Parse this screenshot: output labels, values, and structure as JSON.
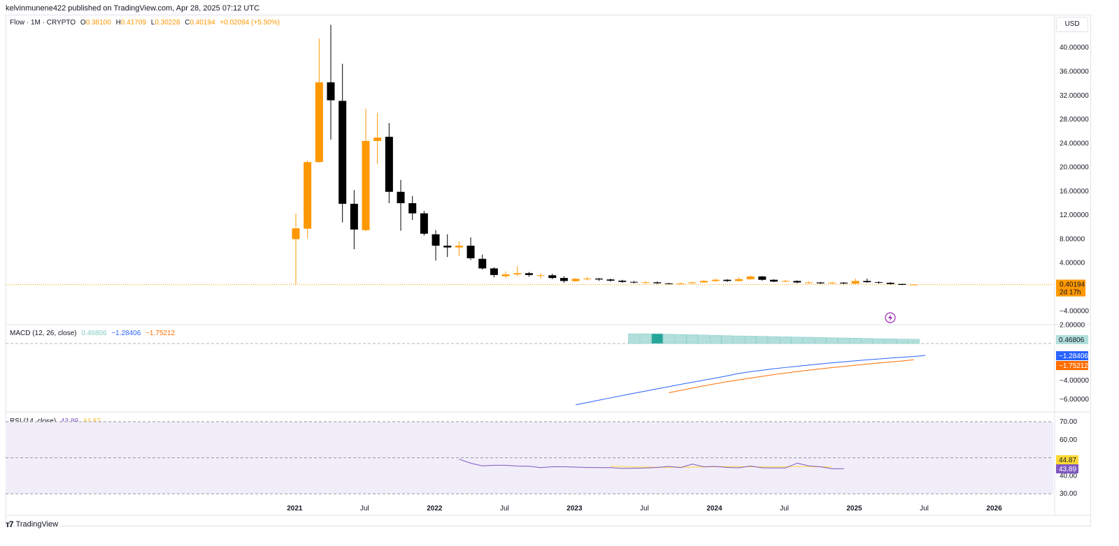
{
  "header": {
    "publish_line": "kelvinmunene422 published on TradingView.com, Apr 28, 2025 07:12 UTC"
  },
  "price_legend": {
    "symbol": "Flow · 1M · CRYPTO",
    "o_label": "O",
    "o": "0.38100",
    "h_label": "H",
    "h": "0.41709",
    "l_label": "L",
    "l": "0.30228",
    "c_label": "C",
    "c": "0.40194",
    "change": "+0.02094 (+5.50%)"
  },
  "currency_button": "USD",
  "macd_legend": {
    "title": "MACD (12, 26, close)",
    "hist": "0.46806",
    "macd": "−1.28406",
    "signal": "−1.75212"
  },
  "rsi_legend": {
    "title": "RSI (14, close)",
    "rsi": "43.89",
    "ma": "44.87"
  },
  "footer": {
    "brand": "TradingView"
  },
  "colors": {
    "up": "#ff9800",
    "down": "#000000",
    "macd_line": "#2962ff",
    "signal_line": "#ff6d00",
    "hist": "#b2dfdb",
    "hist_strong": "#26a69a",
    "rsi_line": "#7e57c2",
    "rsi_ma": "#fdd835",
    "rsi_band": "#f1edf9"
  },
  "chart_data": [
    {
      "type": "candlestick",
      "title": "Flow · 1M · CRYPTO",
      "y_ticks": [
        "40.00000",
        "36.00000",
        "32.00000",
        "28.00000",
        "24.00000",
        "20.00000",
        "16.00000",
        "12.00000",
        "8.00000",
        "4.00000",
        "−4.00000"
      ],
      "x_ticks": [
        "2021",
        "Jul",
        "2022",
        "Jul",
        "2023",
        "Jul",
        "2024",
        "Jul",
        "2025",
        "Jul",
        "2026"
      ],
      "ylim": [
        -5,
        42
      ],
      "last_price_label": "0.40194",
      "countdown_label": "2d 17h",
      "candles": [
        [
          7.99,
          9.8,
          12.25,
          0.4
        ],
        [
          9.74,
          20.87,
          21.1,
          8.1
        ],
        [
          20.87,
          34.2,
          41.5,
          20.8
        ],
        [
          34.2,
          31.2,
          43.8,
          24.6
        ],
        [
          31.1,
          13.9,
          37.3,
          10.8
        ],
        [
          13.9,
          9.6,
          16.2,
          6.3
        ],
        [
          9.5,
          24.4,
          29.8,
          9.3
        ],
        [
          24.4,
          24.97,
          29.1,
          20.5
        ],
        [
          25.1,
          15.9,
          27.4,
          14.0
        ],
        [
          15.9,
          14.0,
          17.9,
          9.4
        ],
        [
          14.0,
          12.3,
          15.2,
          11.2
        ],
        [
          12.3,
          8.9,
          12.7,
          8.6
        ],
        [
          8.8,
          6.9,
          9.5,
          4.4
        ],
        [
          6.9,
          6.6,
          8.8,
          5.0
        ],
        [
          6.6,
          6.9,
          7.6,
          5.2
        ],
        [
          6.9,
          4.8,
          8.3,
          4.5
        ],
        [
          4.7,
          3.1,
          5.4,
          2.9
        ],
        [
          3.1,
          2.0,
          3.3,
          1.6
        ],
        [
          1.8,
          2.1,
          2.6,
          1.5
        ],
        [
          2.1,
          2.3,
          3.5,
          1.8
        ],
        [
          2.3,
          2.0,
          2.5,
          1.7
        ],
        [
          1.85,
          1.95,
          2.3,
          1.4
        ],
        [
          1.95,
          1.5,
          2.2,
          1.3
        ],
        [
          1.5,
          1.0,
          1.8,
          0.7
        ],
        [
          0.98,
          1.35,
          1.5,
          0.85
        ],
        [
          1.35,
          1.4,
          1.7,
          1.1
        ],
        [
          1.4,
          1.25,
          1.5,
          1.0
        ],
        [
          1.25,
          1.05,
          1.4,
          0.9
        ],
        [
          1.05,
          0.85,
          1.2,
          0.7
        ],
        [
          0.85,
          0.75,
          1.0,
          0.6
        ],
        [
          0.72,
          0.78,
          0.95,
          0.55
        ],
        [
          0.78,
          0.62,
          0.9,
          0.5
        ],
        [
          0.6,
          0.55,
          0.7,
          0.45
        ],
        [
          0.55,
          0.6,
          0.75,
          0.45
        ],
        [
          0.62,
          0.75,
          0.9,
          0.55
        ],
        [
          0.75,
          1.0,
          1.2,
          0.7
        ],
        [
          1.0,
          1.2,
          1.4,
          0.85
        ],
        [
          1.2,
          1.0,
          1.3,
          0.85
        ],
        [
          1.0,
          1.3,
          1.6,
          0.9
        ],
        [
          1.3,
          1.75,
          1.95,
          1.2
        ],
        [
          1.75,
          1.2,
          1.85,
          1.05
        ],
        [
          1.2,
          0.9,
          1.3,
          0.8
        ],
        [
          0.9,
          1.0,
          1.2,
          0.8
        ],
        [
          1.0,
          0.75,
          1.1,
          0.6
        ],
        [
          0.72,
          0.75,
          0.95,
          0.55
        ],
        [
          0.75,
          0.6,
          0.85,
          0.5
        ],
        [
          0.6,
          0.72,
          0.85,
          0.5
        ],
        [
          0.72,
          0.58,
          0.8,
          0.45
        ],
        [
          0.55,
          1.0,
          1.4,
          0.5
        ],
        [
          1.0,
          0.8,
          1.4,
          0.7
        ],
        [
          0.8,
          0.7,
          0.95,
          0.55
        ],
        [
          0.7,
          0.5,
          0.8,
          0.4
        ],
        [
          0.5,
          0.35,
          0.55,
          0.3
        ],
        [
          0.38,
          0.4,
          0.42,
          0.3
        ]
      ]
    },
    {
      "type": "bar+line",
      "title": "MACD (12, 26, close)",
      "y_ticks": [
        "2.00000",
        "−4.00000",
        "−6.00000"
      ],
      "ylim": [
        -7,
        2.2
      ],
      "hist_start_index": 29,
      "histogram": [
        1.05,
        1.05,
        1.05,
        1.0,
        0.98,
        0.95,
        0.92,
        0.88,
        0.85,
        0.82,
        0.8,
        0.78,
        0.75,
        0.72,
        0.7,
        0.68,
        0.65,
        0.62,
        0.6,
        0.58,
        0.55,
        0.52,
        0.5,
        0.48,
        0.46
      ],
      "macd_start_index": 24,
      "macd": [
        -6.6,
        -6.35,
        -6.1,
        -5.85,
        -5.6,
        -5.36,
        -5.12,
        -4.88,
        -4.64,
        -4.4,
        -4.17,
        -3.94,
        -3.72,
        -3.48,
        -3.22,
        -3.04,
        -2.88,
        -2.72,
        -2.58,
        -2.45,
        -2.32,
        -2.2,
        -2.08,
        -1.97,
        -1.86,
        -1.76,
        -1.66,
        -1.57,
        -1.48,
        -1.4,
        -1.28
      ],
      "signal_start_index": 32,
      "signal": [
        -5.3,
        -5.05,
        -4.8,
        -4.56,
        -4.33,
        -4.11,
        -3.91,
        -3.72,
        -3.53,
        -3.35,
        -3.18,
        -3.02,
        -2.87,
        -2.73,
        -2.59,
        -2.46,
        -2.34,
        -2.22,
        -2.1,
        -1.99,
        -1.88,
        -1.75
      ],
      "last_hist_label": "0.46806",
      "last_macd_label": "−1.28406",
      "last_signal_label": "−1.75212"
    },
    {
      "type": "line",
      "title": "RSI (14, close)",
      "y_ticks": [
        "70.00",
        "60.00",
        "40.00",
        "30.00"
      ],
      "ylim": [
        28,
        72
      ],
      "band": [
        30,
        70
      ],
      "rsi_start_index": 14,
      "rsi": [
        49.2,
        47.0,
        45.5,
        45.8,
        45.8,
        45.4,
        45.3,
        44.5,
        45.0,
        45.0,
        44.8,
        44.6,
        44.5,
        44.5,
        44.1,
        44.2,
        44.3,
        44.6,
        45.2,
        44.5,
        46.5,
        45.0,
        45.2,
        44.6,
        44.4,
        45.4,
        44.4,
        44.3,
        44.3,
        47.0,
        45.5,
        45.0,
        43.9,
        43.89
      ],
      "ma_start_index": 27,
      "ma": [
        45.3,
        45.1,
        44.9,
        44.8,
        44.7,
        44.7,
        44.8,
        44.8,
        44.9,
        45.0,
        45.1,
        45.1,
        45.0,
        44.9,
        44.9,
        45.0,
        45.1,
        45.1,
        45.0,
        44.87
      ],
      "last_rsi_label": "43.89",
      "last_ma_label": "44.87"
    }
  ]
}
